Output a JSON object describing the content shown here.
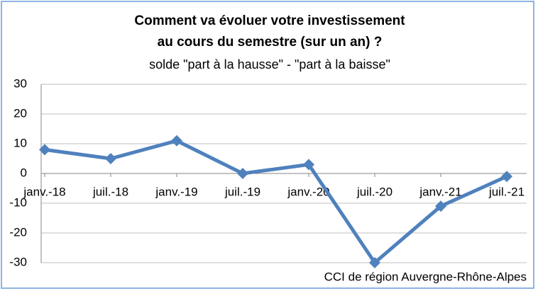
{
  "chart_data": {
    "type": "line",
    "title": [
      "Comment va évoluer votre investissement",
      "au cours du semestre (sur un an) ?"
    ],
    "subtitle": "solde \"part à la hausse\" - \"part à la baisse\"",
    "source": "CCI de région Auvergne-Rhône-Alpes",
    "categories": [
      "janv.-18",
      "juil.-18",
      "janv.-19",
      "juil.-19",
      "janv.-20",
      "juil.-20",
      "janv.-21",
      "juil.-21"
    ],
    "series": [
      {
        "name": "solde",
        "color": "#4f81bd",
        "values": [
          8,
          5,
          11,
          0,
          3,
          -30,
          -11,
          -1
        ]
      }
    ],
    "ylim": [
      -30,
      30
    ],
    "yticks": [
      -30,
      -20,
      -10,
      0,
      10,
      20,
      30
    ],
    "grid": true
  }
}
